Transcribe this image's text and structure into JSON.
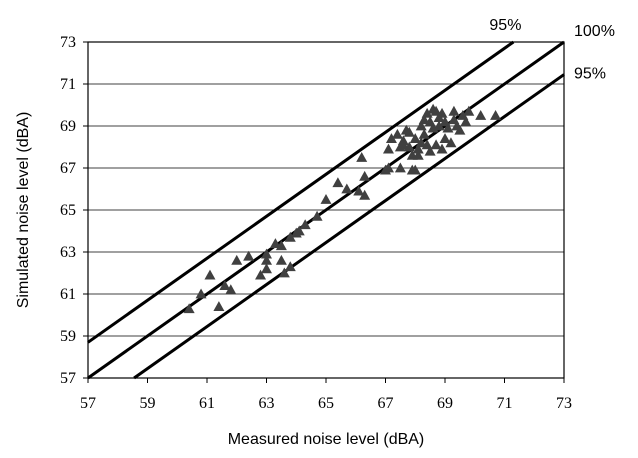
{
  "chart_data": {
    "type": "scatter",
    "title": "",
    "xlabel": "Measured noise level (dBA)",
    "ylabel": "Simulated noise level (dBA)",
    "xlim": [
      57,
      73
    ],
    "ylim": [
      57,
      73
    ],
    "xticks": [
      "57",
      "59",
      "61",
      "63",
      "65",
      "67",
      "69",
      "71",
      "73"
    ],
    "yticks": [
      "57",
      "59",
      "61",
      "63",
      "65",
      "67",
      "69",
      "71",
      "73"
    ],
    "grid": "horizontal",
    "marker": "triangle",
    "marker_color": "#404040",
    "line_color": "#000000",
    "reference_lines": [
      {
        "label": "95%",
        "offset": 1.7
      },
      {
        "label": "100%",
        "offset": 0
      },
      {
        "label": "95%",
        "offset": -1.55
      }
    ],
    "points": [
      [
        60.4,
        60.3
      ],
      [
        60.8,
        61.0
      ],
      [
        61.1,
        61.9
      ],
      [
        61.4,
        60.4
      ],
      [
        61.6,
        61.4
      ],
      [
        61.8,
        61.2
      ],
      [
        62.0,
        62.6
      ],
      [
        62.4,
        62.8
      ],
      [
        62.8,
        61.9
      ],
      [
        63.0,
        62.2
      ],
      [
        63.0,
        62.6
      ],
      [
        63.0,
        62.9
      ],
      [
        63.3,
        63.4
      ],
      [
        63.5,
        62.6
      ],
      [
        63.5,
        63.3
      ],
      [
        63.6,
        62.0
      ],
      [
        63.8,
        62.3
      ],
      [
        63.8,
        63.7
      ],
      [
        64.0,
        63.9
      ],
      [
        64.1,
        64.0
      ],
      [
        64.3,
        64.3
      ],
      [
        64.7,
        64.7
      ],
      [
        65.0,
        65.5
      ],
      [
        65.4,
        66.3
      ],
      [
        65.7,
        66.0
      ],
      [
        66.1,
        65.9
      ],
      [
        66.2,
        67.5
      ],
      [
        66.3,
        66.6
      ],
      [
        66.3,
        65.7
      ],
      [
        67.0,
        66.9
      ],
      [
        67.1,
        67.0
      ],
      [
        67.1,
        67.9
      ],
      [
        67.2,
        68.4
      ],
      [
        67.4,
        68.6
      ],
      [
        67.5,
        67.0
      ],
      [
        67.5,
        68.0
      ],
      [
        67.6,
        68.3
      ],
      [
        67.6,
        68.1
      ],
      [
        67.7,
        68.8
      ],
      [
        67.8,
        68.0
      ],
      [
        67.8,
        68.7
      ],
      [
        67.9,
        67.6
      ],
      [
        67.9,
        66.9
      ],
      [
        68.0,
        66.9
      ],
      [
        68.0,
        68.4
      ],
      [
        68.1,
        67.9
      ],
      [
        68.1,
        67.6
      ],
      [
        68.2,
        68.2
      ],
      [
        68.2,
        69.0
      ],
      [
        68.3,
        68.6
      ],
      [
        68.3,
        69.3
      ],
      [
        68.4,
        68.1
      ],
      [
        68.4,
        69.6
      ],
      [
        68.5,
        69.2
      ],
      [
        68.5,
        67.8
      ],
      [
        68.6,
        68.9
      ],
      [
        68.6,
        69.8
      ],
      [
        68.7,
        69.7
      ],
      [
        68.7,
        68.1
      ],
      [
        68.8,
        69.4
      ],
      [
        68.8,
        69.0
      ],
      [
        68.9,
        67.9
      ],
      [
        68.9,
        69.6
      ],
      [
        69.0,
        69.2
      ],
      [
        69.0,
        68.4
      ],
      [
        69.1,
        68.9
      ],
      [
        69.2,
        68.2
      ],
      [
        69.3,
        69.3
      ],
      [
        69.3,
        69.7
      ],
      [
        69.4,
        69.0
      ],
      [
        69.5,
        68.8
      ],
      [
        69.6,
        69.5
      ],
      [
        69.7,
        69.2
      ],
      [
        69.8,
        69.7
      ],
      [
        70.2,
        69.5
      ],
      [
        70.7,
        69.5
      ]
    ]
  }
}
